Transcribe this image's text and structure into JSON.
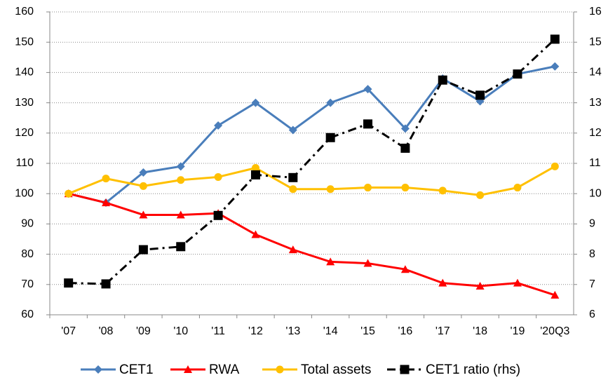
{
  "chart_data": {
    "type": "line",
    "categories": [
      "'07",
      "'08",
      "'09",
      "'10",
      "'11",
      "'12",
      "'13",
      "'14",
      "'15",
      "'16",
      "'17",
      "'18",
      "'19",
      "'20Q3"
    ],
    "series": [
      {
        "name": "CET1",
        "color": "#4a7ebb",
        "marker": "diamond",
        "values": [
          100,
          97,
          107,
          109,
          122.5,
          130,
          121,
          130,
          134.5,
          121.5,
          138,
          130.5,
          139.5,
          142
        ]
      },
      {
        "name": "RWA",
        "color": "#ff0000",
        "marker": "triangle",
        "values": [
          100,
          97,
          93,
          93,
          93.5,
          86.5,
          81.5,
          77.5,
          77,
          75,
          70.5,
          69.5,
          70.5,
          66.5
        ]
      },
      {
        "name": "Total assets",
        "color": "#ffc000",
        "marker": "circle",
        "values": [
          100,
          105,
          102.5,
          104.5,
          105.5,
          108.5,
          101.5,
          101.5,
          102,
          102,
          101,
          99.5,
          102,
          109
        ]
      },
      {
        "name": "CET1 ratio (rhs)",
        "color": "#000000",
        "marker": "square",
        "dashed": true,
        "axis": "y2",
        "values": [
          7.05,
          7.02,
          8.15,
          8.25,
          9.28,
          10.62,
          10.53,
          11.85,
          12.3,
          11.5,
          13.75,
          13.25,
          13.95,
          15.1
        ]
      }
    ],
    "ylim": [
      60,
      160
    ],
    "yticks": [
      60,
      70,
      80,
      90,
      100,
      110,
      120,
      130,
      140,
      150,
      160
    ],
    "y2lim": [
      6,
      16
    ],
    "y2ticks": [
      6,
      7,
      8,
      9,
      10,
      11,
      12,
      13,
      14,
      15,
      16
    ],
    "grid": true,
    "legend": "bottom"
  }
}
